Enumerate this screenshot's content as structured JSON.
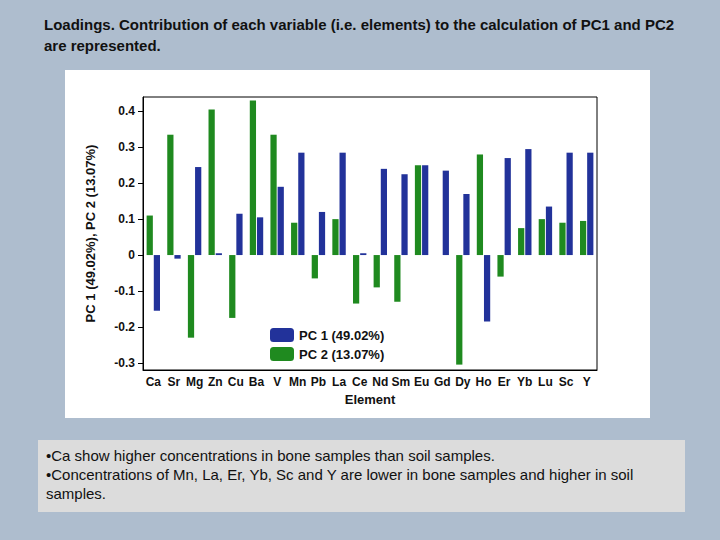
{
  "heading": "Loadings. Contribution of each variable (i.e. elements) to the calculation of PC1 and PC2 are represented.",
  "notes": [
    "•Ca show higher concentrations in bone samples  than soil samples.",
    "•Concentrations of Mn, La, Er, Yb, Sc and Y are lower in bone samples and higher in soil samples."
  ],
  "chart_data": {
    "type": "bar",
    "x_label": "Element",
    "y_label": "PC 1 (49.02%), PC 2 (13.07%)",
    "categories": [
      "Ca",
      "Sr",
      "Mg",
      "Zn",
      "Cu",
      "Ba",
      "V",
      "Mn",
      "Pb",
      "La",
      "Ce",
      "Nd",
      "Sm",
      "Eu",
      "Gd",
      "Dy",
      "Ho",
      "Er",
      "Yb",
      "Lu",
      "Sc",
      "Y"
    ],
    "series": [
      {
        "name": "PC 1 (49.02%)",
        "color": "#22329a",
        "values": [
          -0.155,
          -0.01,
          0.245,
          0.005,
          0.115,
          0.105,
          0.19,
          0.285,
          0.12,
          0.285,
          0.005,
          0.24,
          0.225,
          0.25,
          0.235,
          0.17,
          -0.185,
          0.27,
          0.295,
          0.135,
          0.285,
          0.285
        ]
      },
      {
        "name": "PC 2 (13.07%)",
        "color": "#1f8a1f",
        "values": [
          0.11,
          0.335,
          -0.23,
          0.405,
          -0.175,
          0.43,
          0.335,
          0.09,
          -0.065,
          0.1,
          -0.135,
          -0.09,
          -0.13,
          0.25,
          0.0,
          -0.305,
          0.28,
          -0.06,
          0.075,
          0.1,
          0.09,
          0.095
        ]
      }
    ],
    "ylim": [
      -0.32,
      0.44
    ],
    "yticks": [
      -0.3,
      -0.2,
      -0.1,
      0,
      0.1,
      0.2,
      0.3,
      0.4
    ],
    "grid": false,
    "legend": "bottom"
  }
}
